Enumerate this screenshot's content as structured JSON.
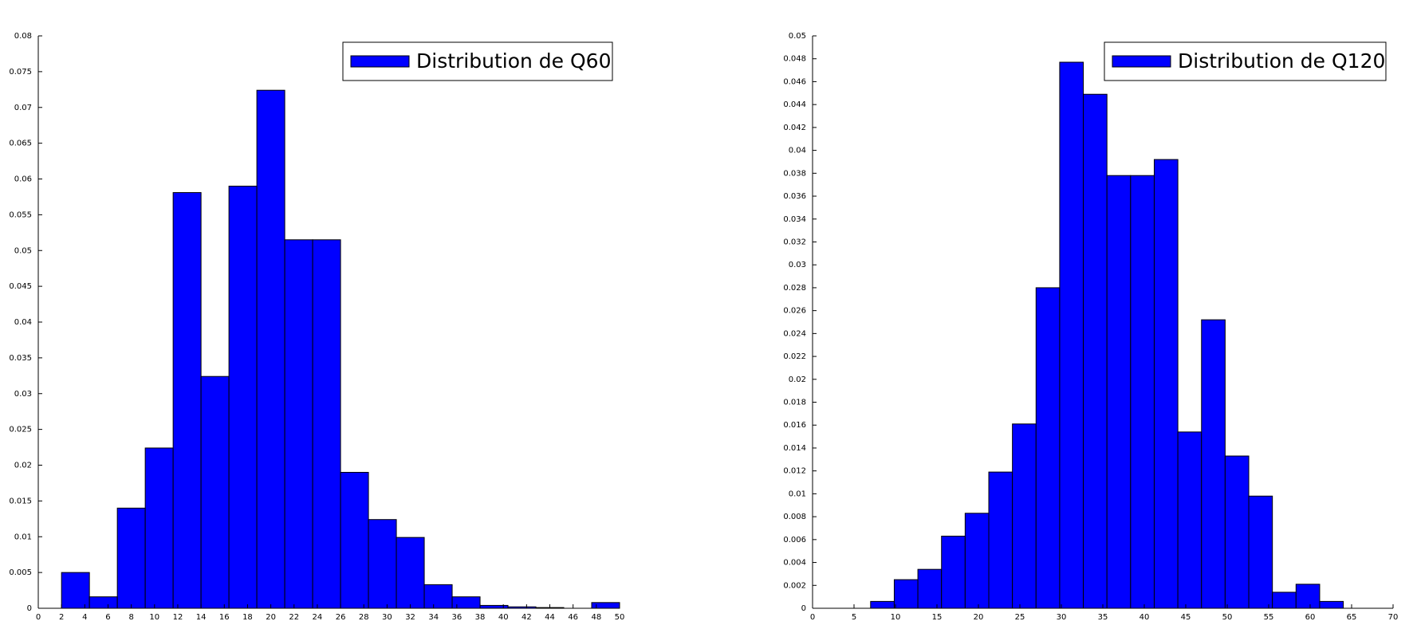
{
  "chart_data": [
    {
      "type": "histogram",
      "bins": [
        2,
        4.4,
        6.8,
        9.2,
        11.6,
        14,
        16.4,
        18.8,
        21.2,
        23.6,
        26,
        28.4,
        30.8,
        33.2,
        35.6,
        38,
        40.4,
        42.8,
        45.2,
        47.6,
        50
      ],
      "series": [
        {
          "name": "Distribution de Q60",
          "color": "#0000ff",
          "values": [
            0.005,
            0.0016,
            0.014,
            0.0224,
            0.0581,
            0.0324,
            0.059,
            0.0724,
            0.0515,
            0.0515,
            0.019,
            0.0124,
            0.0099,
            0.0033,
            0.0016,
            0.0004,
            0.0002,
            0.0001,
            0,
            0.0008
          ]
        }
      ],
      "xlim": [
        0,
        50
      ],
      "xticks": [
        0,
        2,
        4,
        6,
        8,
        10,
        12,
        14,
        16,
        18,
        20,
        22,
        24,
        26,
        28,
        30,
        32,
        34,
        36,
        38,
        40,
        42,
        44,
        46,
        48,
        50
      ],
      "ylim": [
        0,
        0.08
      ],
      "yticks": [
        0,
        0.005,
        0.01,
        0.015,
        0.02,
        0.025,
        0.03,
        0.035,
        0.04,
        0.045,
        0.05,
        0.055,
        0.06,
        0.065,
        0.07,
        0.075,
        0.08
      ],
      "legend": "upper right"
    },
    {
      "type": "histogram",
      "bins": [
        7,
        9.85,
        12.7,
        15.55,
        18.4,
        21.25,
        24.1,
        26.95,
        29.8,
        32.65,
        35.5,
        38.35,
        41.2,
        44.05,
        46.9,
        49.75,
        52.6,
        55.45,
        58.3,
        61.15,
        64
      ],
      "series": [
        {
          "name": "Distribution de Q120",
          "color": "#0000ff",
          "values": [
            0.0006,
            0.0025,
            0.0034,
            0.0063,
            0.0083,
            0.0119,
            0.0161,
            0.028,
            0.0477,
            0.0449,
            0.0378,
            0.0378,
            0.0392,
            0.0154,
            0.0252,
            0.0133,
            0.0098,
            0.0014,
            0.0021,
            0.0006
          ]
        }
      ],
      "xlim": [
        0,
        70
      ],
      "xticks": [
        0,
        5,
        10,
        15,
        20,
        25,
        30,
        35,
        40,
        45,
        50,
        55,
        60,
        65,
        70
      ],
      "ylim": [
        0,
        0.05
      ],
      "yticks": [
        0,
        0.002,
        0.004,
        0.006,
        0.008,
        0.01,
        0.012,
        0.014,
        0.016,
        0.018,
        0.02,
        0.022,
        0.024,
        0.026,
        0.028,
        0.03,
        0.032,
        0.034,
        0.036,
        0.038,
        0.04,
        0.042,
        0.044,
        0.046,
        0.048,
        0.05
      ],
      "legend": "upper right"
    }
  ]
}
